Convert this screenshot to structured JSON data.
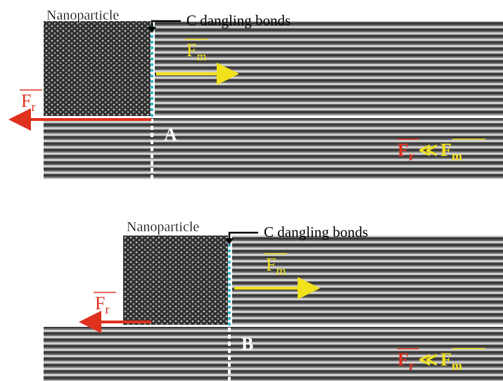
{
  "panels": [
    {
      "nanoparticle": "Nanoparticle",
      "bonds": "C dangling bonds",
      "letter": "A",
      "force_m": {
        "symbol": "F",
        "subscript": "m"
      },
      "force_r": {
        "symbol": "F",
        "subscript": "r"
      },
      "inequality": {
        "left": "F",
        "left_sub": "r",
        "operator": "≪",
        "right": "F",
        "right_sub": "m"
      }
    },
    {
      "nanoparticle": "Nanoparticle",
      "bonds": "C dangling bonds",
      "letter": "B",
      "force_m": {
        "symbol": "F",
        "subscript": "m"
      },
      "force_r": {
        "symbol": "F",
        "subscript": "r"
      },
      "inequality": {
        "left": "F",
        "left_sub": "r",
        "operator": "≪",
        "right": "F",
        "right_sub": "m"
      }
    }
  ]
}
